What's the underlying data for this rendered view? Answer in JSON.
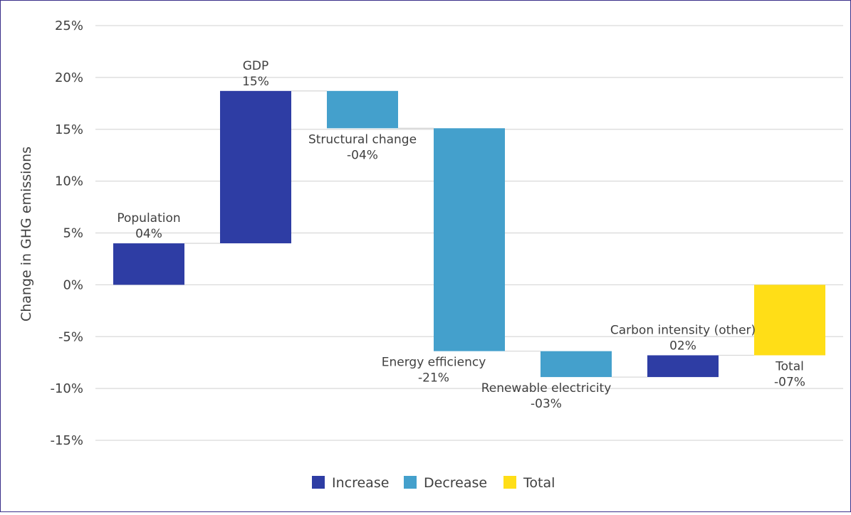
{
  "chart_data": {
    "type": "bar",
    "subtype": "waterfall",
    "ylabel": "Change in GHG emissions",
    "ylim": [
      -15,
      25
    ],
    "yticks": [
      25,
      20,
      15,
      10,
      5,
      0,
      -5,
      -10,
      -15
    ],
    "ytick_labels": [
      "25%",
      "20%",
      "15%",
      "10%",
      "5%",
      "0%",
      "-5%",
      "-10%",
      "-15%"
    ],
    "grid": true,
    "legend_position": "bottom",
    "colors": {
      "increase": "#2e3da4",
      "decrease": "#44a0cc",
      "total": "#ffde17"
    },
    "legend": [
      {
        "key": "increase",
        "label": "Increase"
      },
      {
        "key": "decrease",
        "label": "Decrease"
      },
      {
        "key": "total",
        "label": "Total"
      }
    ],
    "steps": [
      {
        "name": "Population",
        "label": "Population\n04%",
        "kind": "increase",
        "value": 4.0,
        "start": 0.0,
        "end": 4.0
      },
      {
        "name": "GDP",
        "label": "GDP\n15%",
        "kind": "increase",
        "value": 14.7,
        "start": 4.0,
        "end": 18.7
      },
      {
        "name": "Structural change",
        "label": "Structural change\n-04%",
        "kind": "decrease",
        "value": -3.6,
        "start": 18.7,
        "end": 15.1
      },
      {
        "name": "Energy efficiency",
        "label": "Energy efficiency\n-21%",
        "kind": "decrease",
        "value": -21.5,
        "start": 15.1,
        "end": -6.4
      },
      {
        "name": "Renewable electricity",
        "label": "Renewable electricity\n-03%",
        "kind": "decrease",
        "value": -2.5,
        "start": -6.4,
        "end": -8.9
      },
      {
        "name": "Carbon intensity (other)",
        "label": "Carbon intensity (other)\n02%",
        "kind": "increase",
        "value": 2.1,
        "start": -8.9,
        "end": -6.8
      },
      {
        "name": "Total",
        "label": "Total\n-07%",
        "kind": "total",
        "value": -6.8,
        "start": 0.0,
        "end": -6.8
      }
    ]
  }
}
